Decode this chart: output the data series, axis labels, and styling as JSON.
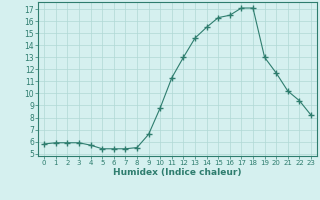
{
  "x": [
    0,
    1,
    2,
    3,
    4,
    5,
    6,
    7,
    8,
    9,
    10,
    11,
    12,
    13,
    14,
    15,
    16,
    17,
    18,
    19,
    20,
    21,
    22,
    23
  ],
  "y": [
    5.8,
    5.9,
    5.9,
    5.9,
    5.7,
    5.4,
    5.4,
    5.4,
    5.5,
    6.6,
    8.8,
    11.3,
    13.0,
    14.6,
    15.5,
    16.3,
    16.5,
    17.1,
    17.1,
    13.0,
    11.7,
    10.2,
    9.4,
    8.2
  ],
  "line_color": "#2e7d6e",
  "marker": "+",
  "marker_size": 4,
  "bg_color": "#d5f0ef",
  "grid_color": "#b0d8d5",
  "xlabel": "Humidex (Indice chaleur)",
  "ylim": [
    4.8,
    17.6
  ],
  "xlim": [
    -0.5,
    23.5
  ],
  "yticks": [
    5,
    6,
    7,
    8,
    9,
    10,
    11,
    12,
    13,
    14,
    15,
    16,
    17
  ],
  "xticks": [
    0,
    1,
    2,
    3,
    4,
    5,
    6,
    7,
    8,
    9,
    10,
    11,
    12,
    13,
    14,
    15,
    16,
    17,
    18,
    19,
    20,
    21,
    22,
    23
  ],
  "tick_color": "#2e7d6e",
  "label_color": "#2e7d6e"
}
